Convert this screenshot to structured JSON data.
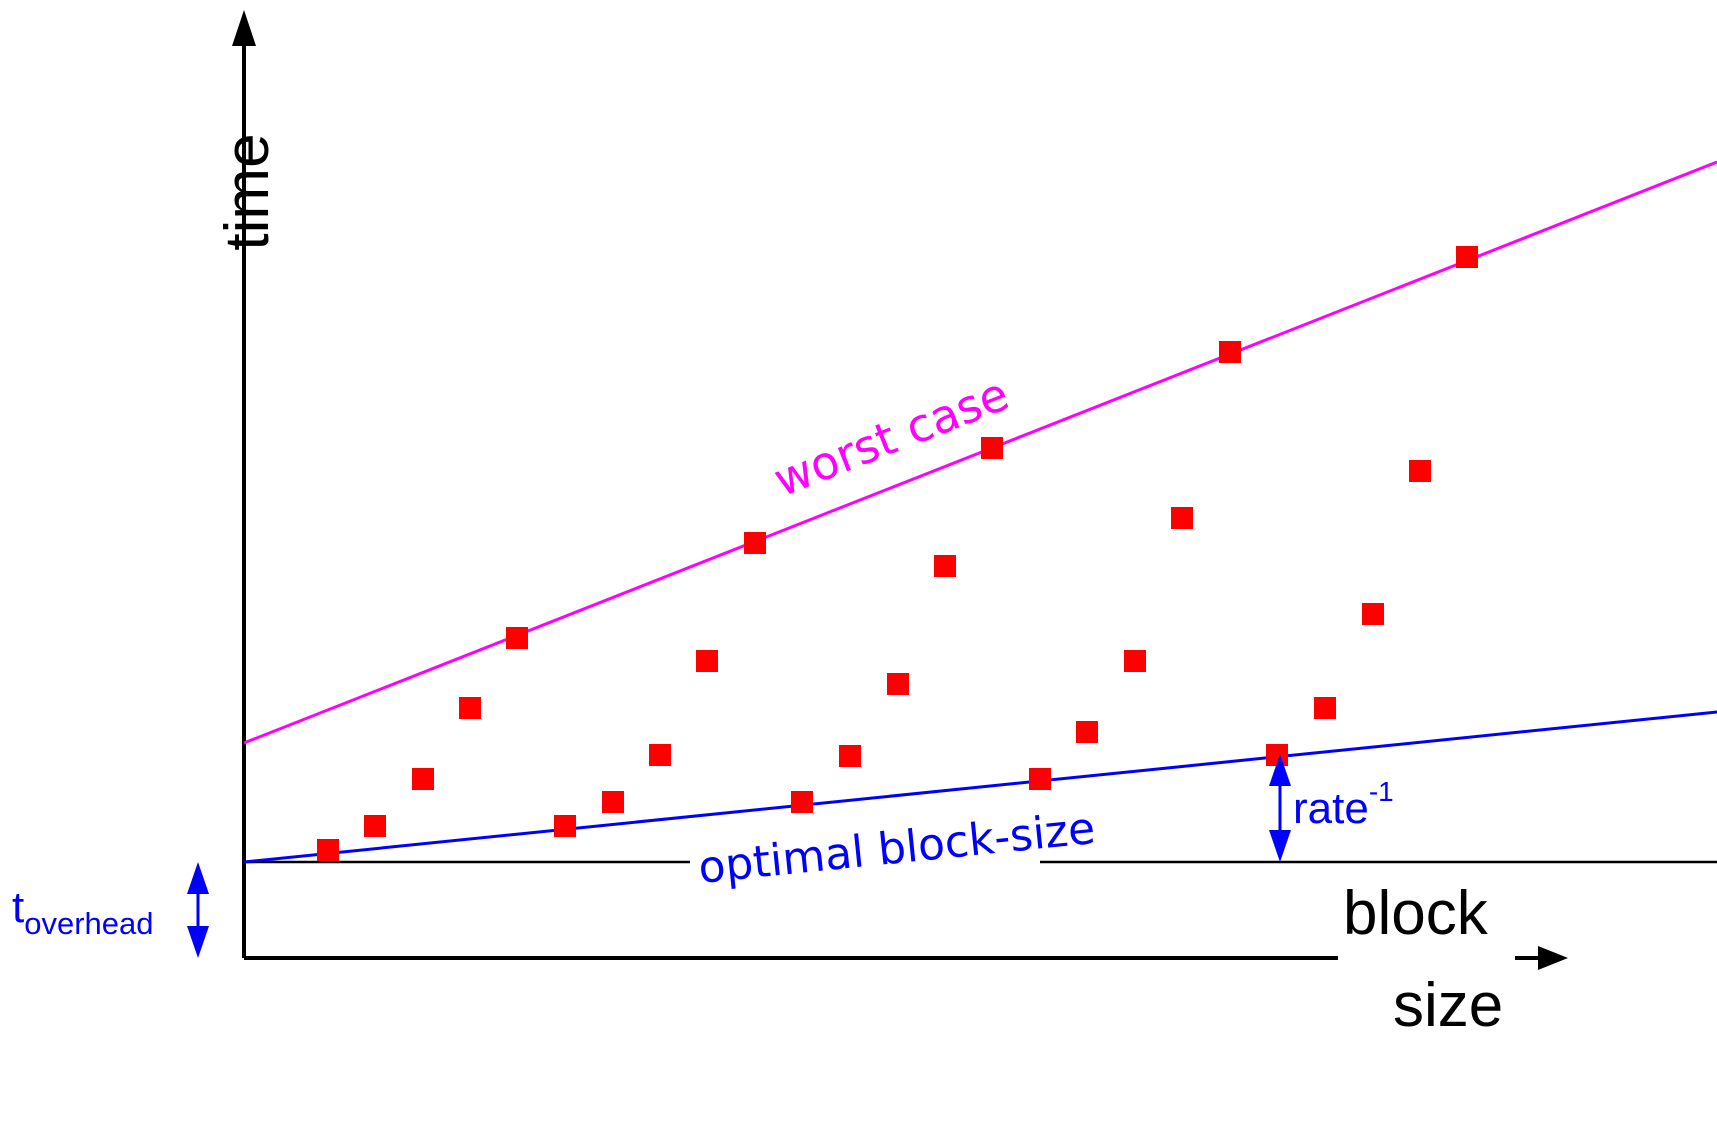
{
  "diagram": {
    "axis_y_label": "time",
    "axis_x_label_line1": "block",
    "axis_x_label_line2": "size",
    "worst_case_label": "worst case",
    "optimal_label": "optimal block-size",
    "rate_label": "rate",
    "rate_superscript": "-1",
    "overhead_label": "t",
    "overhead_subscript": "overhead",
    "colors": {
      "axes": "#000000",
      "points": "#ff0000",
      "worst_case_line": "#ff00ff",
      "optimal_line": "#0000ff",
      "annotation": "#0000ff",
      "baseline": "#000000"
    }
  }
}
